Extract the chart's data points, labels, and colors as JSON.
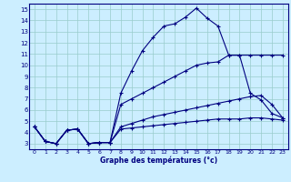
{
  "bg_color": "#cceeff",
  "grid_color": "#99cccc",
  "line_color": "#000080",
  "text_color": "#000080",
  "xlabel": "Graphe des températures (°c)",
  "xlim": [
    -0.5,
    23.5
  ],
  "ylim": [
    2.5,
    15.5
  ],
  "yticks": [
    3,
    4,
    5,
    6,
    7,
    8,
    9,
    10,
    11,
    12,
    13,
    14,
    15
  ],
  "xticks": [
    0,
    1,
    2,
    3,
    4,
    5,
    6,
    7,
    8,
    9,
    10,
    11,
    12,
    13,
    14,
    15,
    16,
    17,
    18,
    19,
    20,
    21,
    22,
    23
  ],
  "series1_x": [
    0,
    1,
    2,
    3,
    4,
    5,
    6,
    7,
    8,
    9,
    10,
    11,
    12,
    13,
    14,
    15,
    16,
    17,
    18,
    19,
    20,
    21,
    22,
    23
  ],
  "series1_y": [
    4.5,
    3.2,
    3.0,
    4.2,
    4.3,
    3.0,
    3.1,
    3.1,
    7.5,
    9.5,
    11.3,
    12.5,
    13.5,
    13.7,
    14.3,
    15.1,
    14.2,
    13.5,
    10.9,
    10.9,
    10.9,
    10.9,
    10.9,
    10.9
  ],
  "series2_x": [
    0,
    1,
    2,
    3,
    4,
    5,
    6,
    7,
    8,
    9,
    10,
    11,
    12,
    13,
    14,
    15,
    16,
    17,
    18,
    19,
    20,
    21,
    22,
    23
  ],
  "series2_y": [
    4.5,
    3.2,
    3.0,
    4.2,
    4.3,
    3.0,
    3.1,
    3.1,
    6.5,
    7.0,
    7.5,
    8.0,
    8.5,
    9.0,
    9.5,
    10.0,
    10.2,
    10.3,
    10.9,
    10.9,
    7.5,
    6.9,
    5.7,
    5.3
  ],
  "series3_x": [
    0,
    1,
    2,
    3,
    4,
    5,
    6,
    7,
    8,
    9,
    10,
    11,
    12,
    13,
    14,
    15,
    16,
    17,
    18,
    19,
    20,
    21,
    22,
    23
  ],
  "series3_y": [
    4.5,
    3.2,
    3.0,
    4.2,
    4.3,
    3.0,
    3.1,
    3.1,
    4.5,
    4.8,
    5.1,
    5.4,
    5.6,
    5.8,
    6.0,
    6.2,
    6.4,
    6.6,
    6.8,
    7.0,
    7.2,
    7.3,
    6.5,
    5.3
  ],
  "series4_x": [
    0,
    1,
    2,
    3,
    4,
    5,
    6,
    7,
    8,
    9,
    10,
    11,
    12,
    13,
    14,
    15,
    16,
    17,
    18,
    19,
    20,
    21,
    22,
    23
  ],
  "series4_y": [
    4.5,
    3.2,
    3.0,
    4.2,
    4.3,
    3.0,
    3.1,
    3.1,
    4.3,
    4.4,
    4.5,
    4.6,
    4.7,
    4.8,
    4.9,
    5.0,
    5.1,
    5.2,
    5.2,
    5.2,
    5.3,
    5.3,
    5.2,
    5.1
  ]
}
